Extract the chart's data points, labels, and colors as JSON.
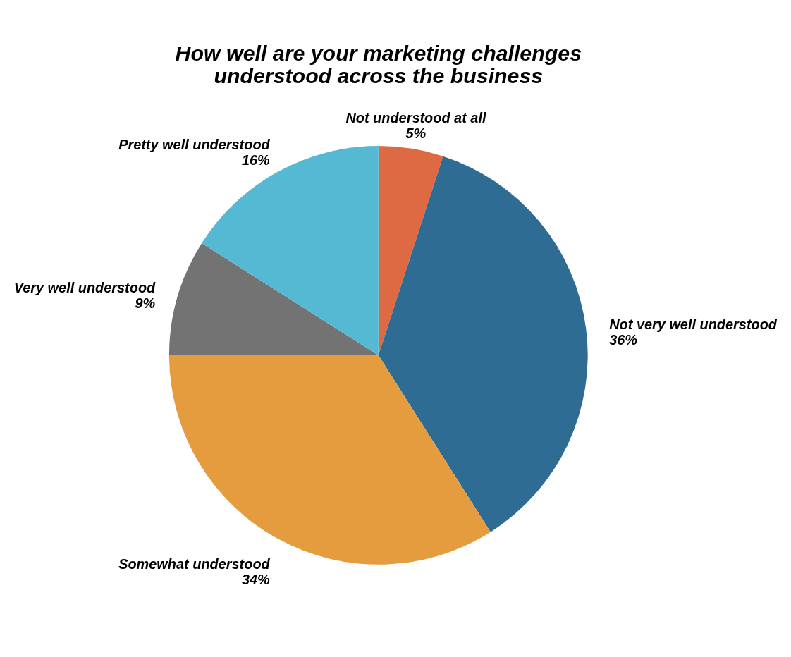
{
  "chart_data": {
    "type": "pie",
    "title": [
      "How well are your marketing challenges",
      "understood across the business"
    ],
    "categories": [
      "Not understood at all",
      "Not very well understood",
      "Somewhat understood",
      "Very well understood",
      "Pretty well understood"
    ],
    "values": [
      5,
      36,
      34,
      9,
      16
    ],
    "value_labels": [
      "5%",
      "36%",
      "34%",
      "9%",
      "16%"
    ],
    "colors": [
      "#dd6a42",
      "#2e6c93",
      "#e59c3e",
      "#737373",
      "#55b9d3"
    ],
    "legend": false
  }
}
